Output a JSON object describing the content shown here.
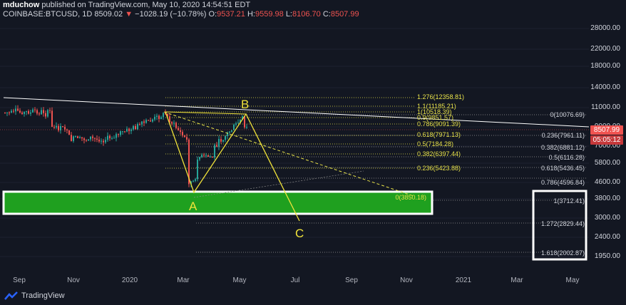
{
  "header": {
    "author": "mduchow",
    "published": "published on TradingView.com, May 10, 2020 14:54:51 EDT",
    "symbol": "COINBASE:BTCUSD, 1D",
    "last": "8509.02",
    "change_arrow": "▼",
    "change": "−1028.19 (−10.78%)",
    "o_label": "O:",
    "o_val": "9537.21",
    "h_label": "H:",
    "h_val": "9559.98",
    "l_label": "L:",
    "l_val": "8106.70",
    "c_label": "C:",
    "c_val": "8507.99"
  },
  "price_axis": [
    "28000.00",
    "22000.00",
    "18000.00",
    "14000.00",
    "11000.00",
    "9000.00",
    "7000.00",
    "5800.00",
    "4600.00",
    "3800.00",
    "3000.00",
    "2400.00",
    "1950.00"
  ],
  "time_axis": [
    "Sep",
    "Nov",
    "2020",
    "Mar",
    "May",
    "Jul",
    "Sep",
    "Nov",
    "2021",
    "Mar",
    "May"
  ],
  "price_tag": "8507.99",
  "time_tag": "05:05:12",
  "fib_ab": [
    "1.276(12358.81)",
    "1.1(11185.21)",
    "1(10518.39)",
    "0.9(9851.57)",
    "0.786(9091.39)",
    "0.618(7971.13)",
    "0.5(7184.28)",
    "0.382(6397.44)",
    "0.236(5423.88)",
    "0(3850.18)"
  ],
  "fib_right": [
    "0(10076.69)",
    "0.236(7961.11)",
    "0.382(6881.12)",
    "0.5(6116.28)",
    "0.618(5436.45)",
    "0.786(4596.84)",
    "1(3712.41)",
    "1.272(2829.44)",
    "1.618(2002.87)"
  ],
  "wave_labels": [
    "A",
    "B",
    "C"
  ],
  "footer": {
    "brand": "TradingView",
    "logo": "tradingview-logo-icon"
  },
  "colors": {
    "bg": "#131722",
    "up": "#26a69a",
    "down": "#ef5350",
    "fib": "#e8e24a",
    "zone": "#1fa01f"
  }
}
